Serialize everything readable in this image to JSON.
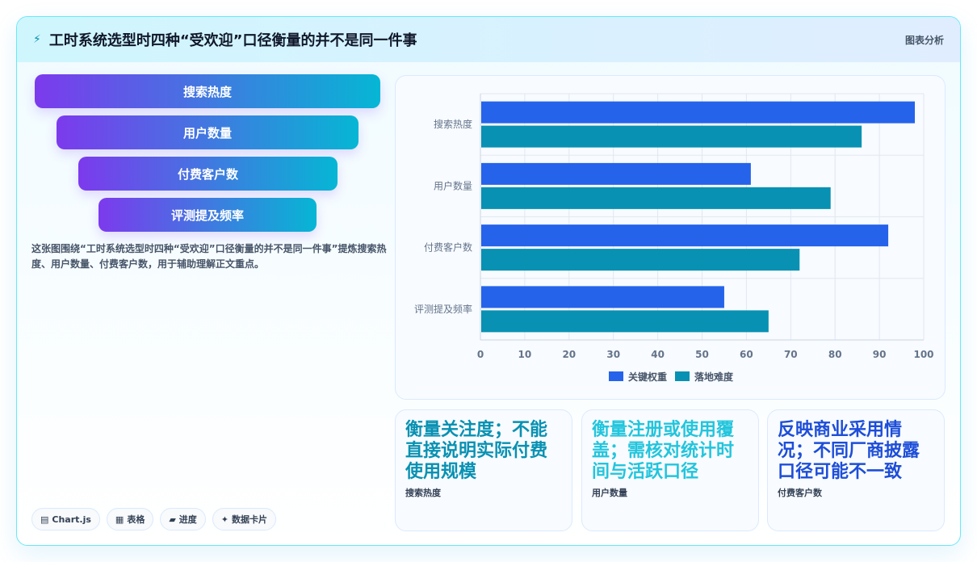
{
  "header": {
    "title": "工时系统选型时四种“受欢迎”口径衡量的并不是同一件事",
    "tag": "图表分析"
  },
  "funnel": [
    "搜索热度",
    "用户数量",
    "付费客户数",
    "评测提及频率"
  ],
  "description": "这张图围绕“工时系统选型时四种“受欢迎”口径衡量的并不是同一件事”提炼搜索热度、用户数量、付费客户数，用于辅助理解正文重点。",
  "chips": [
    {
      "icon": "▤",
      "label": "Chart.js"
    },
    {
      "icon": "▦",
      "label": "表格"
    },
    {
      "icon": "▰",
      "label": "进度"
    },
    {
      "icon": "✦",
      "label": "数据卡片"
    }
  ],
  "stats": [
    {
      "big": "衡量关注度；不能直接说明实际付费使用规模",
      "small": "搜索热度",
      "color": "#0891b2"
    },
    {
      "big": "衡量注册或使用覆盖；需核对统计时间与活跃口径",
      "small": "用户数量",
      "color": "#22c5dc"
    },
    {
      "big": "反映商业采用情况；不同厂商披露口径可能不一致",
      "small": "付费客户数",
      "color": "#1d4ed8"
    }
  ],
  "chart_data": {
    "type": "bar",
    "orientation": "horizontal",
    "categories": [
      "搜索热度",
      "用户数量",
      "付费客户数",
      "评测提及频率"
    ],
    "series": [
      {
        "name": "关键权重",
        "values": [
          98,
          61,
          92,
          55
        ],
        "color": "#2563eb"
      },
      {
        "name": "落地难度",
        "values": [
          86,
          79,
          72,
          65
        ],
        "color": "#0891b2"
      }
    ],
    "xlim": [
      0,
      100
    ],
    "xticks": [
      0,
      10,
      20,
      30,
      40,
      50,
      60,
      70,
      80,
      90,
      100
    ],
    "grid": true,
    "legend": "bottom"
  }
}
